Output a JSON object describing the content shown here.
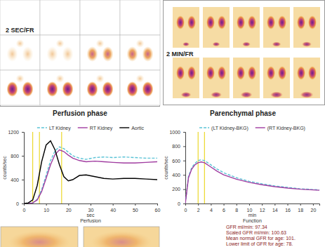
{
  "panels": [
    {
      "label": "2 SEC/FR"
    },
    {
      "label": "2 MIN/FR"
    }
  ],
  "captions": [
    "Perfusion phase",
    "Parenchymal phase"
  ],
  "chart_data": [
    {
      "type": "line",
      "caption": "Perfusion",
      "xlabel": "sec",
      "ylabel": "counts/sec",
      "legend": "top",
      "x": [
        0,
        2,
        4,
        6,
        8,
        10,
        12,
        14,
        16,
        18,
        20,
        22,
        25,
        28,
        32,
        36,
        40,
        45,
        50,
        55,
        60
      ],
      "series": [
        {
          "name": "LT Kidney",
          "color": "#5bc3d6",
          "line_style": "dashed",
          "values": [
            0,
            0,
            10,
            70,
            230,
            470,
            720,
            880,
            950,
            920,
            860,
            800,
            760,
            740,
            770,
            780,
            770,
            780,
            770,
            760,
            760
          ]
        },
        {
          "name": "RT Kidney",
          "color": "#a03ca0",
          "line_style": "solid",
          "values": [
            0,
            0,
            10,
            60,
            200,
            420,
            650,
            820,
            900,
            870,
            810,
            760,
            720,
            700,
            710,
            700,
            690,
            680,
            680,
            690,
            700
          ]
        },
        {
          "name": "Aortic",
          "color": "#000000",
          "line_style": "solid",
          "values": [
            0,
            10,
            60,
            300,
            700,
            980,
            1050,
            900,
            650,
            450,
            380,
            400,
            470,
            480,
            450,
            420,
            410,
            420,
            420,
            410,
            400
          ]
        }
      ],
      "vlines": [
        4,
        7,
        17
      ],
      "xlim": [
        0,
        60
      ],
      "xticks": [
        0,
        10,
        20,
        30,
        40,
        50,
        60
      ],
      "ylim": [
        0,
        1200
      ],
      "yticks": [
        0,
        400,
        800,
        1200
      ],
      "grid": false
    },
    {
      "type": "line",
      "caption": "Function",
      "xlabel": "min",
      "ylabel": "counts/sec",
      "legend": "top",
      "x": [
        0,
        0.5,
        1,
        1.5,
        2,
        2.5,
        3,
        4,
        5,
        6,
        8,
        10,
        12,
        14,
        16,
        18,
        20,
        21
      ],
      "series": [
        {
          "name": "(LT Kidney-BKG)",
          "color": "#5bc3d6",
          "line_style": "dashed",
          "values": [
            0,
            380,
            500,
            560,
            600,
            610,
            600,
            540,
            480,
            430,
            360,
            310,
            275,
            245,
            225,
            205,
            195,
            190
          ]
        },
        {
          "name": "(RT Kidney-BKG)",
          "color": "#a03ca0",
          "line_style": "solid",
          "values": [
            0,
            360,
            480,
            540,
            570,
            580,
            570,
            510,
            450,
            400,
            340,
            295,
            262,
            235,
            215,
            200,
            190,
            185
          ]
        }
      ],
      "vlines": [
        2,
        3
      ],
      "xlim": [
        0,
        21
      ],
      "xticks": [
        0,
        2,
        4,
        6,
        8,
        10,
        12,
        14,
        16,
        18,
        20
      ],
      "ylim": [
        0,
        1000
      ],
      "yticks": [
        0,
        200,
        400,
        600,
        800,
        1000
      ],
      "grid": false
    }
  ],
  "results": [
    "GFR ml/min: 97.34",
    "Scaled GFR ml/min: 100.63",
    "Mean normal GFR for age: 101.",
    "Lower limit of GFR for age: 78."
  ]
}
